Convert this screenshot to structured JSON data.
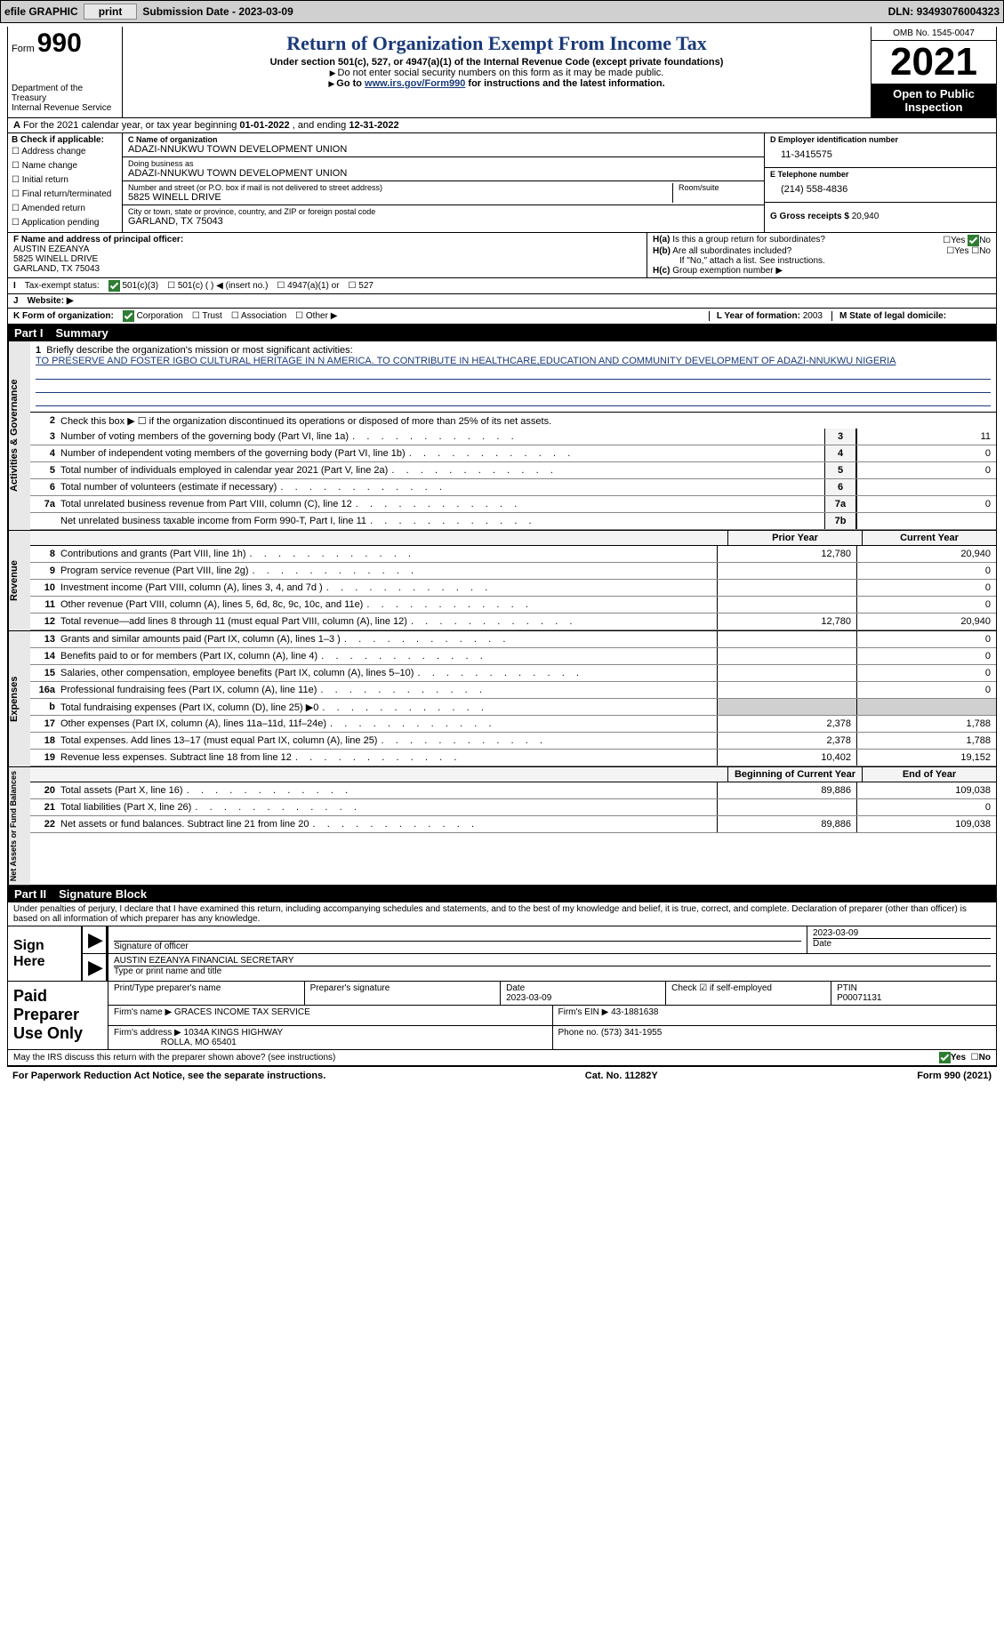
{
  "topbar": {
    "efile": "efile GRAPHIC",
    "print": "print",
    "submission_label": "Submission Date - ",
    "submission_date": "2023-03-09",
    "dln_label": "DLN: ",
    "dln": "93493076004323"
  },
  "header": {
    "form_label": "Form",
    "form_number": "990",
    "dept": "Department of the Treasury\nInternal Revenue Service",
    "title": "Return of Organization Exempt From Income Tax",
    "subtitle": "Under section 501(c), 527, or 4947(a)(1) of the Internal Revenue Code (except private foundations)",
    "note1": "Do not enter social security numbers on this form as it may be made public.",
    "note2_pre": "Go to ",
    "note2_link": "www.irs.gov/Form990",
    "note2_post": " for instructions and the latest information.",
    "omb": "OMB No. 1545-0047",
    "year": "2021",
    "open": "Open to Public Inspection"
  },
  "row_a": {
    "text": "For the 2021 calendar year, or tax year beginning ",
    "begin": "01-01-2022",
    "mid": " , and ending ",
    "end": "12-31-2022"
  },
  "section_b": {
    "label": "B Check if applicable:",
    "opts": [
      "Address change",
      "Name change",
      "Initial return",
      "Final return/terminated",
      "Amended return",
      "Application pending"
    ]
  },
  "section_c": {
    "name_lbl": "C Name of organization",
    "name": "ADAZI-NNUKWU TOWN DEVELOPMENT UNION",
    "dba_lbl": "Doing business as",
    "dba": "ADAZI-NNUKWU TOWN DEVELOPMENT UNION",
    "addr_lbl": "Number and street (or P.O. box if mail is not delivered to street address)",
    "room_lbl": "Room/suite",
    "addr": "5825 WINELL DRIVE",
    "city_lbl": "City or town, state or province, country, and ZIP or foreign postal code",
    "city": "GARLAND, TX  75043"
  },
  "section_d": {
    "ein_lbl": "D Employer identification number",
    "ein": "11-3415575",
    "tel_lbl": "E Telephone number",
    "tel": "(214) 558-4836",
    "gross_lbl": "G Gross receipts $ ",
    "gross": "20,940"
  },
  "section_f": {
    "lbl": "F Name and address of principal officer:",
    "name": "AUSTIN EZEANYA",
    "addr1": "5825 WINELL DRIVE",
    "addr2": "GARLAND, TX  75043"
  },
  "section_h": {
    "ha": "Is this a group return for subordinates?",
    "hb": "Are all subordinates included?",
    "note": "If \"No,\" attach a list. See instructions.",
    "hc": "Group exemption number ▶"
  },
  "row_i": {
    "lbl": "Tax-exempt status:",
    "opts": [
      "501(c)(3)",
      "501(c) (  ) ◀ (insert no.)",
      "4947(a)(1) or",
      "527"
    ]
  },
  "row_j": {
    "lbl": "Website: ▶"
  },
  "row_k": {
    "lbl": "K Form of organization:",
    "opts": [
      "Corporation",
      "Trust",
      "Association",
      "Other ▶"
    ],
    "l_lbl": "L Year of formation: ",
    "l_val": "2003",
    "m_lbl": "M State of legal domicile:"
  },
  "part1": {
    "label": "Part I",
    "title": "Summary",
    "tab_gov": "Activities & Governance",
    "tab_rev": "Revenue",
    "tab_exp": "Expenses",
    "tab_net": "Net Assets or Fund Balances",
    "line1_lbl": "Briefly describe the organization's mission or most significant activities:",
    "mission": "TO PRESERVE AND FOSTER IGBO CULTURAL HERITAGE IN N AMERICA. TO CONTRIBUTE IN HEALTHCARE,EDUCATION AND COMMUNITY DEVELOPMENT OF ADAZI-NNUKWU NIGERIA",
    "line2": "Check this box ▶ ☐ if the organization discontinued its operations or disposed of more than 25% of its net assets.",
    "rows_gov": [
      {
        "n": "3",
        "d": "Number of voting members of the governing body (Part VI, line 1a)",
        "box": "3",
        "v": "11"
      },
      {
        "n": "4",
        "d": "Number of independent voting members of the governing body (Part VI, line 1b)",
        "box": "4",
        "v": "0"
      },
      {
        "n": "5",
        "d": "Total number of individuals employed in calendar year 2021 (Part V, line 2a)",
        "box": "5",
        "v": "0"
      },
      {
        "n": "6",
        "d": "Total number of volunteers (estimate if necessary)",
        "box": "6",
        "v": ""
      },
      {
        "n": "7a",
        "d": "Total unrelated business revenue from Part VIII, column (C), line 12",
        "box": "7a",
        "v": "0"
      },
      {
        "n": "",
        "d": "Net unrelated business taxable income from Form 990-T, Part I, line 11",
        "box": "7b",
        "v": ""
      }
    ],
    "head_prior": "Prior Year",
    "head_current": "Current Year",
    "rows_rev": [
      {
        "n": "8",
        "d": "Contributions and grants (Part VIII, line 1h)",
        "p": "12,780",
        "c": "20,940"
      },
      {
        "n": "9",
        "d": "Program service revenue (Part VIII, line 2g)",
        "p": "",
        "c": "0"
      },
      {
        "n": "10",
        "d": "Investment income (Part VIII, column (A), lines 3, 4, and 7d )",
        "p": "",
        "c": "0"
      },
      {
        "n": "11",
        "d": "Other revenue (Part VIII, column (A), lines 5, 6d, 8c, 9c, 10c, and 11e)",
        "p": "",
        "c": "0"
      },
      {
        "n": "12",
        "d": "Total revenue—add lines 8 through 11 (must equal Part VIII, column (A), line 12)",
        "p": "12,780",
        "c": "20,940"
      }
    ],
    "rows_exp": [
      {
        "n": "13",
        "d": "Grants and similar amounts paid (Part IX, column (A), lines 1–3 )",
        "p": "",
        "c": "0"
      },
      {
        "n": "14",
        "d": "Benefits paid to or for members (Part IX, column (A), line 4)",
        "p": "",
        "c": "0"
      },
      {
        "n": "15",
        "d": "Salaries, other compensation, employee benefits (Part IX, column (A), lines 5–10)",
        "p": "",
        "c": "0"
      },
      {
        "n": "16a",
        "d": "Professional fundraising fees (Part IX, column (A), line 11e)",
        "p": "",
        "c": "0"
      },
      {
        "n": "b",
        "d": "Total fundraising expenses (Part IX, column (D), line 25) ▶0",
        "p": "GRAY",
        "c": "GRAY"
      },
      {
        "n": "17",
        "d": "Other expenses (Part IX, column (A), lines 11a–11d, 11f–24e)",
        "p": "2,378",
        "c": "1,788"
      },
      {
        "n": "18",
        "d": "Total expenses. Add lines 13–17 (must equal Part IX, column (A), line 25)",
        "p": "2,378",
        "c": "1,788"
      },
      {
        "n": "19",
        "d": "Revenue less expenses. Subtract line 18 from line 12",
        "p": "10,402",
        "c": "19,152"
      }
    ],
    "head_begin": "Beginning of Current Year",
    "head_end": "End of Year",
    "rows_net": [
      {
        "n": "20",
        "d": "Total assets (Part X, line 16)",
        "p": "89,886",
        "c": "109,038"
      },
      {
        "n": "21",
        "d": "Total liabilities (Part X, line 26)",
        "p": "",
        "c": "0"
      },
      {
        "n": "22",
        "d": "Net assets or fund balances. Subtract line 21 from line 20",
        "p": "89,886",
        "c": "109,038"
      }
    ]
  },
  "part2": {
    "label": "Part II",
    "title": "Signature Block",
    "declaration": "Under penalties of perjury, I declare that I have examined this return, including accompanying schedules and statements, and to the best of my knowledge and belief, it is true, correct, and complete. Declaration of preparer (other than officer) is based on all information of which preparer has any knowledge.",
    "sign_here": "Sign Here",
    "sig_officer": "Signature of officer",
    "sig_date": "2023-03-09",
    "date_lbl": "Date",
    "officer_name": "AUSTIN EZEANYA  FINANCIAL SECRETARY",
    "type_name": "Type or print name and title",
    "paid": "Paid Preparer Use Only",
    "prep_name_lbl": "Print/Type preparer's name",
    "prep_sig_lbl": "Preparer's signature",
    "prep_date_lbl": "Date",
    "prep_date": "2023-03-09",
    "check_if": "Check ☑ if self-employed",
    "ptin_lbl": "PTIN",
    "ptin": "P00071131",
    "firm_name_lbl": "Firm's name   ▶",
    "firm_name": "GRACES INCOME TAX SERVICE",
    "firm_ein_lbl": "Firm's EIN ▶",
    "firm_ein": "43-1881638",
    "firm_addr_lbl": "Firm's address ▶",
    "firm_addr": "1034A KINGS HIGHWAY",
    "firm_city": "ROLLA, MO  65401",
    "phone_lbl": "Phone no. ",
    "phone": "(573) 341-1955",
    "irs_discuss": "May the IRS discuss this return with the preparer shown above? (see instructions)"
  },
  "footer": {
    "left": "For Paperwork Reduction Act Notice, see the separate instructions.",
    "mid": "Cat. No. 11282Y",
    "right": "Form 990 (2021)"
  },
  "checkmarks": {
    "checked_svg_color": "#2e7d32"
  }
}
